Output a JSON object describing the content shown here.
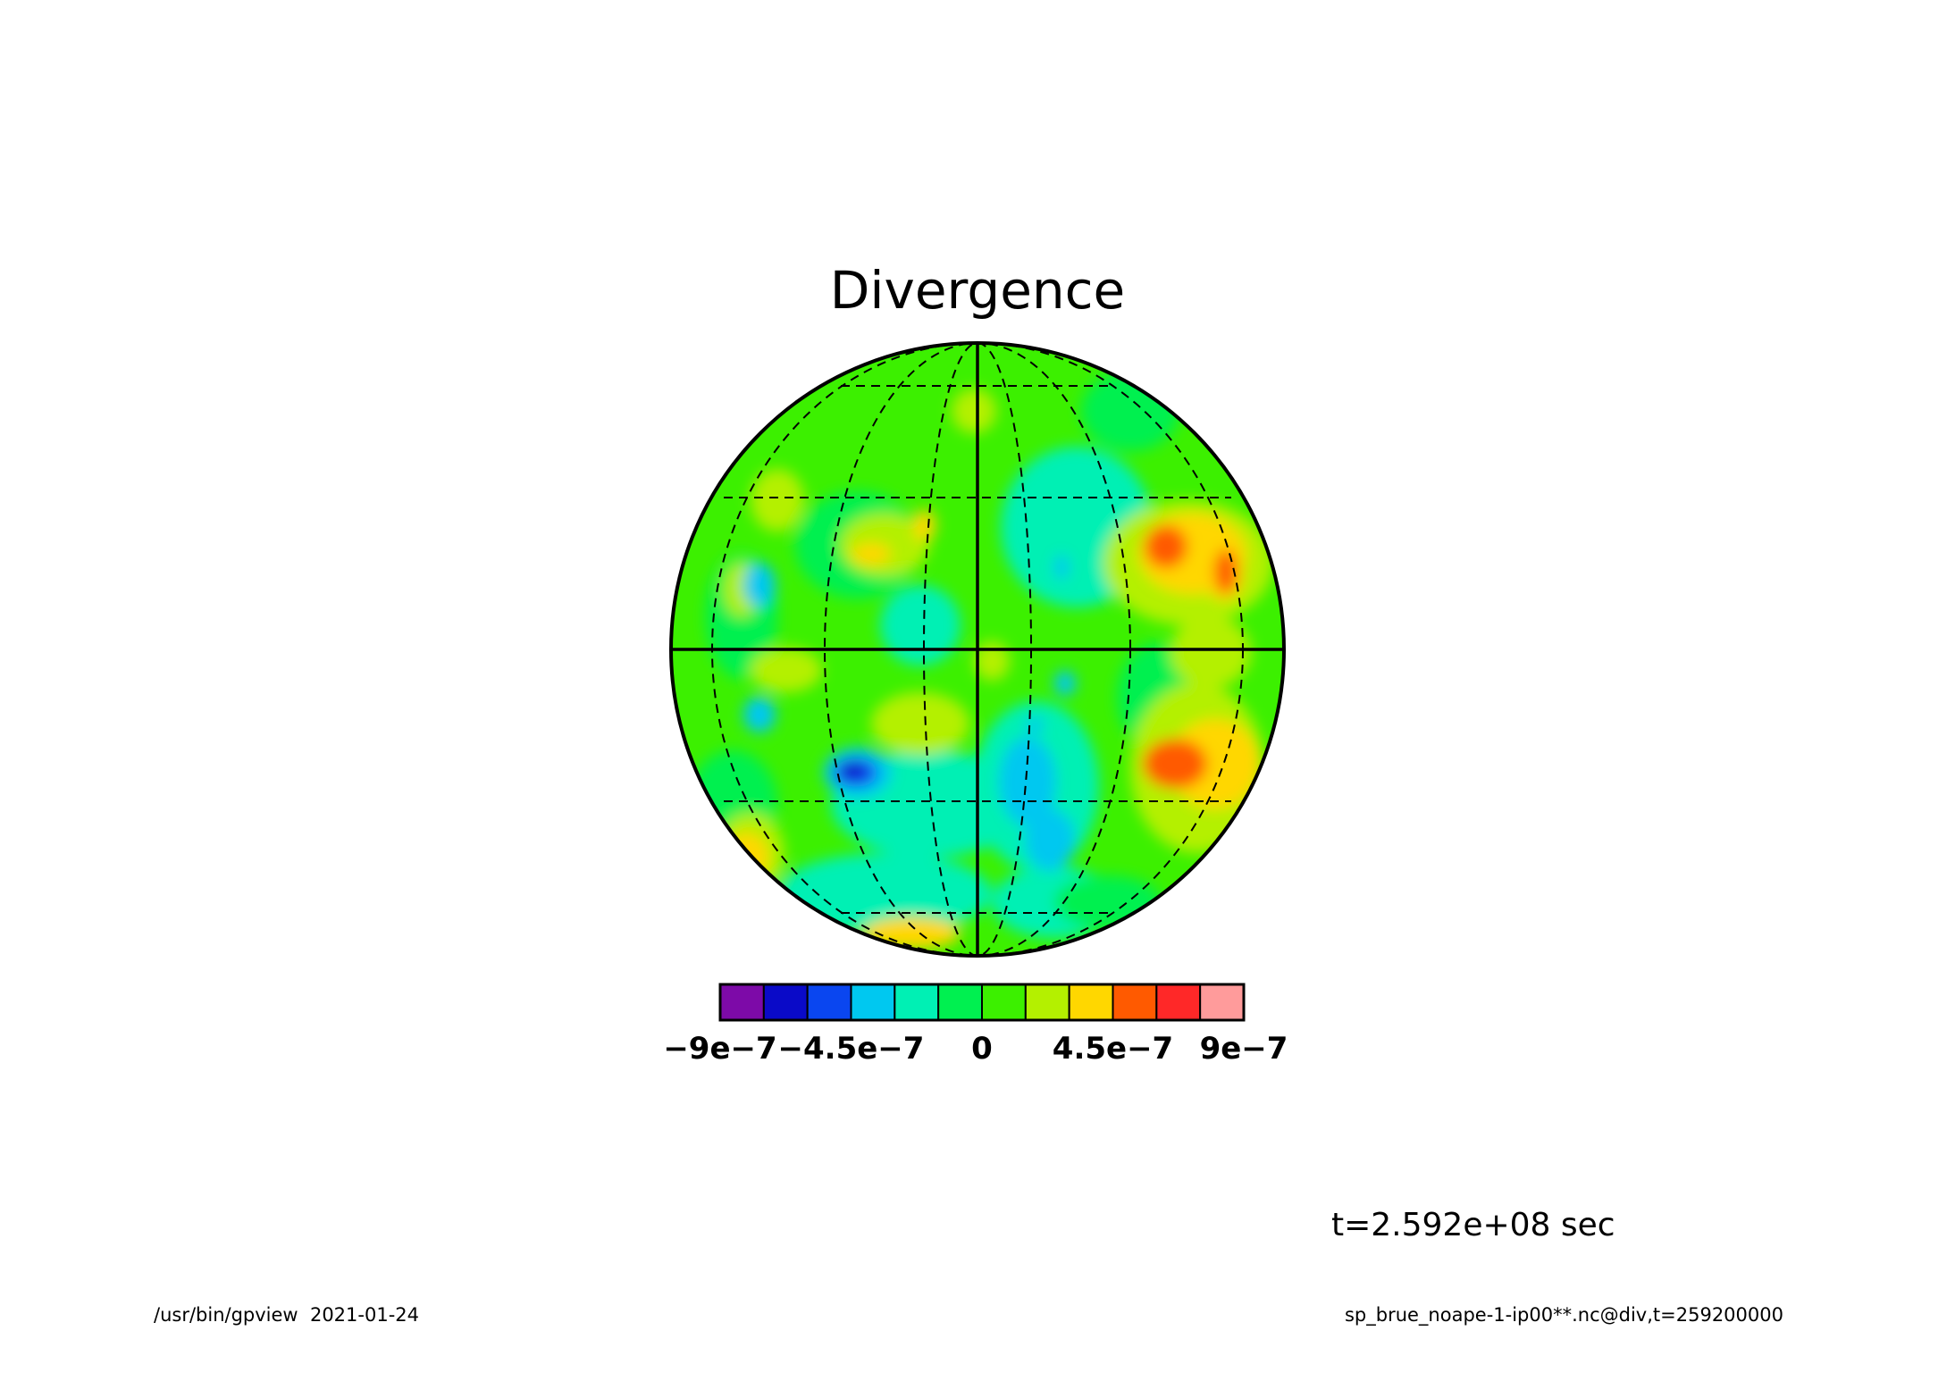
{
  "chart_data": {
    "type": "heatmap",
    "title": "Divergence",
    "projection": "orthographic globe",
    "colorbar": {
      "levels": 12,
      "colors": [
        "#7d0aa8",
        "#0a0ac8",
        "#0a46f0",
        "#00c8f0",
        "#00f0b4",
        "#00f050",
        "#3cf000",
        "#b4f000",
        "#ffd700",
        "#ff5a00",
        "#ff2828",
        "#ff9b9b"
      ],
      "tick_labels": [
        "−9e−7",
        "−4.5e−7",
        "0",
        "4.5e−7",
        "9e−7"
      ],
      "tick_values": [
        -9e-07,
        -4.5e-07,
        0,
        4.5e-07,
        9e-07
      ],
      "range": [
        -9e-07,
        9e-07
      ]
    },
    "grid": "dashed meridians and parallels, solid equator and central meridian",
    "field_features": [
      {
        "region": "northeast",
        "sign": "positive",
        "level": 10
      },
      {
        "region": "east-northeast",
        "sign": "positive",
        "level": 10
      },
      {
        "region": "southeast",
        "sign": "positive",
        "level": 10
      },
      {
        "region": "southwest-center",
        "sign": "negative",
        "level": 2
      },
      {
        "region": "south-center",
        "sign": "negative",
        "level": 4
      },
      {
        "region": "central-north",
        "sign": "negative",
        "level": 5
      },
      {
        "region": "far-southwest",
        "sign": "positive",
        "level": 9
      }
    ]
  },
  "annotations": {
    "time_label": "t=2.592e+08 sec",
    "footer_left": "/usr/bin/gpview  2021-01-24",
    "footer_right": "sp_brue_noape-1-ip00**.nc@div,t=259200000"
  }
}
